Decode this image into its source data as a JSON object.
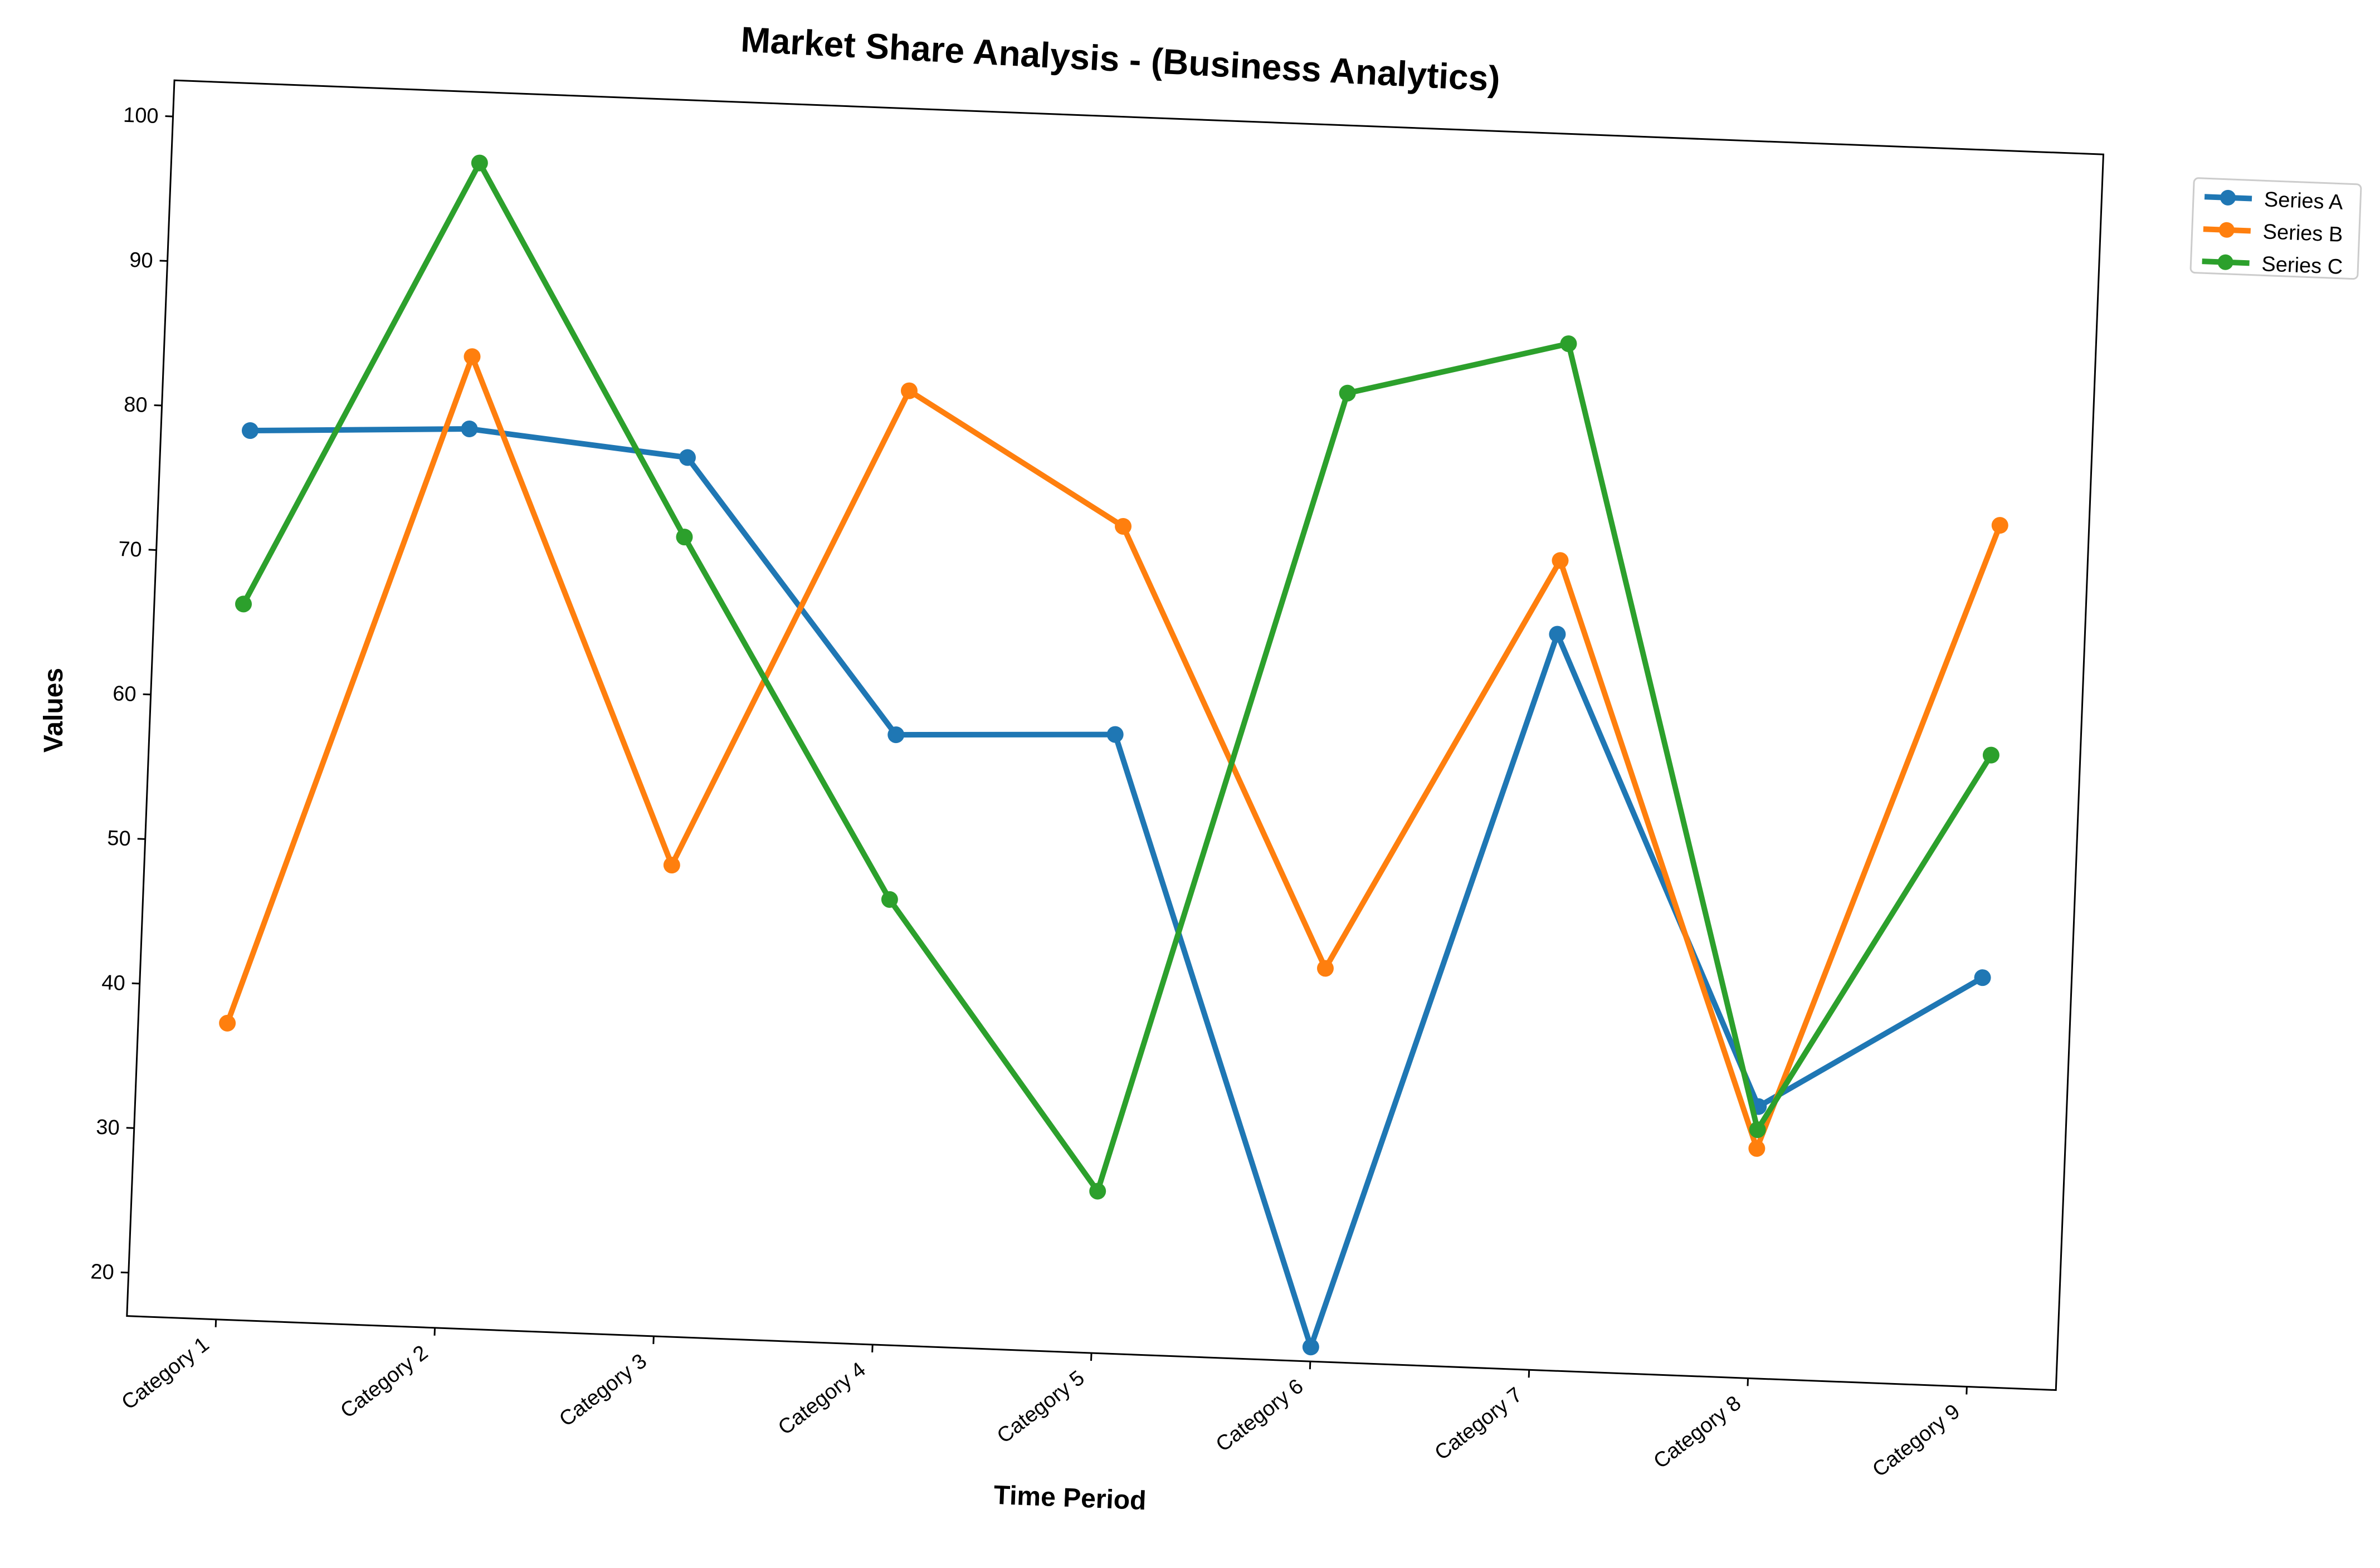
{
  "chart_data": {
    "type": "line",
    "title": "Market Share Analysis - (Business Analytics)",
    "xlabel": "Time Period",
    "ylabel": "Values",
    "categories": [
      "Category 1",
      "Category 2",
      "Category 3",
      "Category 4",
      "Category 5",
      "Category 6",
      "Category 7",
      "Category 8",
      "Category 9"
    ],
    "yticks": [
      20,
      30,
      40,
      50,
      60,
      70,
      80,
      90,
      100
    ],
    "ylim": [
      17,
      102.5
    ],
    "grid": false,
    "legend_position": "outside top-right",
    "series": [
      {
        "name": "Series A",
        "color": "#1f77b4",
        "values": [
          78.5,
          79.2,
          77.8,
          59.2,
          59.8,
          18.0,
          67.9,
          35.8,
          45.3
        ]
      },
      {
        "name": "Series B",
        "color": "#ff7f0e",
        "values": [
          37.5,
          84.2,
          49.6,
          83.0,
          74.2,
          44.2,
          73.0,
          32.9,
          76.6
        ]
      },
      {
        "name": "Series C",
        "color": "#2ca02c",
        "values": [
          66.5,
          97.6,
          72.3,
          47.8,
          28.2,
          84.0,
          88.0,
          34.2,
          60.7
        ]
      }
    ]
  }
}
